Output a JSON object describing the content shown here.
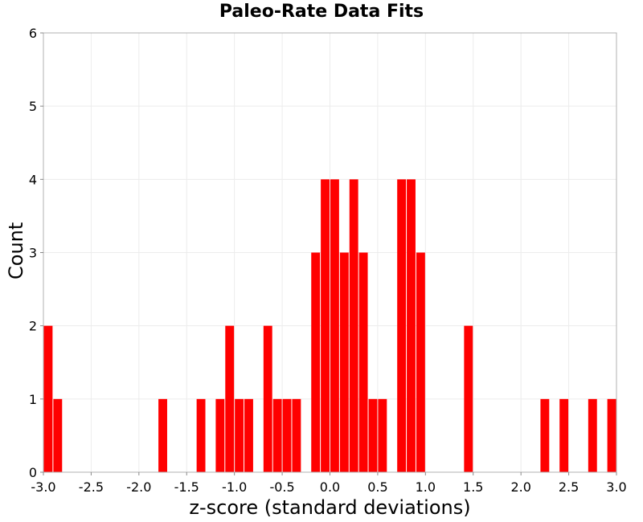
{
  "chart_data": {
    "type": "bar",
    "title": "Paleo-Rate Data Fits",
    "xlabel": "z-score (standard deviations)",
    "ylabel": "Count",
    "xlim": [
      -3.0,
      3.0
    ],
    "ylim": [
      0,
      6
    ],
    "bin_width": 0.1,
    "grid": true,
    "legend": "none",
    "bar_color": "#ff0000",
    "x_ticks": [
      "-3.0",
      "-2.5",
      "-2.0",
      "-1.5",
      "-1.0",
      "-0.5",
      "0.0",
      "0.5",
      "1.0",
      "1.5",
      "2.0",
      "2.5",
      "3.0"
    ],
    "y_ticks": [
      "0",
      "1",
      "2",
      "3",
      "4",
      "5",
      "6"
    ],
    "bins": [
      {
        "x": -2.95,
        "count": 2
      },
      {
        "x": -2.85,
        "count": 1
      },
      {
        "x": -1.75,
        "count": 1
      },
      {
        "x": -1.35,
        "count": 1
      },
      {
        "x": -1.15,
        "count": 1
      },
      {
        "x": -1.05,
        "count": 2
      },
      {
        "x": -0.95,
        "count": 1
      },
      {
        "x": -0.85,
        "count": 1
      },
      {
        "x": -0.65,
        "count": 2
      },
      {
        "x": -0.55,
        "count": 1
      },
      {
        "x": -0.45,
        "count": 1
      },
      {
        "x": -0.35,
        "count": 1
      },
      {
        "x": -0.15,
        "count": 3
      },
      {
        "x": -0.05,
        "count": 4
      },
      {
        "x": 0.05,
        "count": 4
      },
      {
        "x": 0.15,
        "count": 3
      },
      {
        "x": 0.25,
        "count": 4
      },
      {
        "x": 0.35,
        "count": 3
      },
      {
        "x": 0.45,
        "count": 1
      },
      {
        "x": 0.55,
        "count": 1
      },
      {
        "x": 0.75,
        "count": 4
      },
      {
        "x": 0.85,
        "count": 4
      },
      {
        "x": 0.95,
        "count": 3
      },
      {
        "x": 1.45,
        "count": 2
      },
      {
        "x": 2.25,
        "count": 1
      },
      {
        "x": 2.45,
        "count": 1
      },
      {
        "x": 2.75,
        "count": 1
      },
      {
        "x": 2.95,
        "count": 1
      }
    ]
  }
}
